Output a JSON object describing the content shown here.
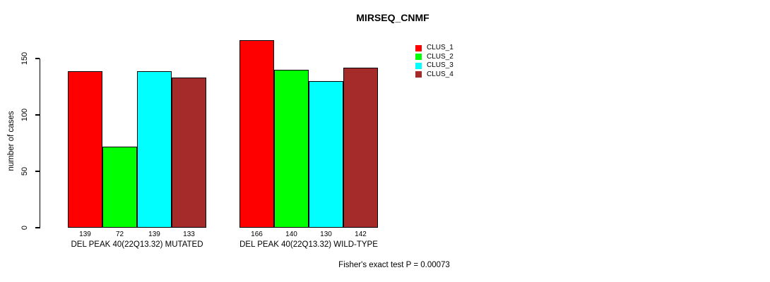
{
  "title": "MIRSEQ_CNMF",
  "footnote": "Fisher's exact test P = 0.00073",
  "chart_data": {
    "type": "bar",
    "title": "MIRSEQ_CNMF",
    "ylabel": "number of cases",
    "xlabel": "",
    "yticks": [
      0,
      50,
      100,
      150
    ],
    "ylim": [
      0,
      166
    ],
    "grid": false,
    "legend_position": "topright-outside-plot",
    "bar_value_labels_shown": true,
    "groups": [
      {
        "label": "DEL PEAK 40(22Q13.32) MUTATED",
        "values": [
          139,
          72,
          139,
          133
        ]
      },
      {
        "label": "DEL PEAK 40(22Q13.32) WILD-TYPE",
        "values": [
          166,
          140,
          130,
          142
        ]
      }
    ],
    "series": [
      {
        "name": "CLUS_1",
        "color": "#FF0000"
      },
      {
        "name": "CLUS_2",
        "color": "#00FF00"
      },
      {
        "name": "CLUS_3",
        "color": "#00FFFF"
      },
      {
        "name": "CLUS_4",
        "color": "#A52A2A"
      }
    ],
    "footnote": "Fisher's exact test P = 0.00073"
  }
}
